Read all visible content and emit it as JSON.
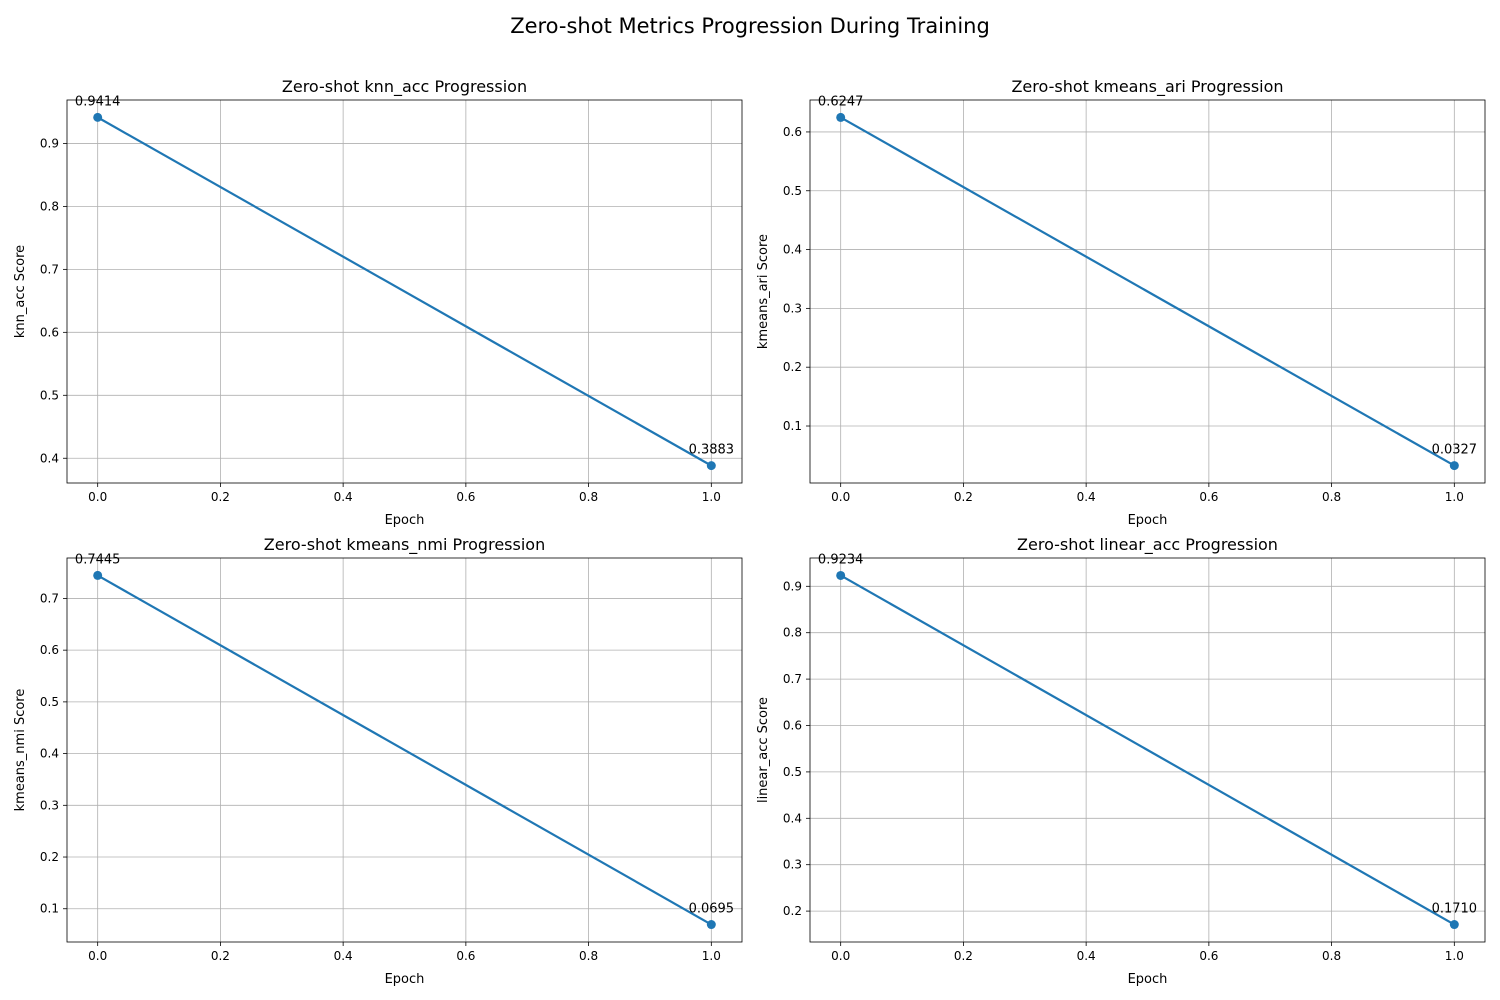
{
  "figure": {
    "title": "Zero-shot Metrics Progression During Training"
  },
  "style": {
    "line_color": "#1f77b4",
    "grid_color": "#b0b0b0",
    "axes_color": "#000000"
  },
  "chart_data": [
    {
      "type": "line",
      "title": "Zero-shot knn_acc Progression",
      "xlabel": "Epoch",
      "ylabel": "knn_acc Score",
      "x": [
        0.0,
        1.0
      ],
      "series": [
        {
          "values": [
            0.9414,
            0.3883
          ]
        }
      ],
      "data_labels": [
        "0.9414",
        "0.3883"
      ],
      "xlim": [
        -0.05,
        1.05
      ],
      "ylim": [
        0.3607,
        0.969
      ],
      "xticks": [
        0.0,
        0.2,
        0.4,
        0.6,
        0.8,
        1.0
      ],
      "xtick_labels": [
        "0.0",
        "0.2",
        "0.4",
        "0.6",
        "0.8",
        "1.0"
      ],
      "yticks": [
        0.4,
        0.5,
        0.6,
        0.7,
        0.8,
        0.9
      ],
      "ytick_labels": [
        "0.4",
        "0.5",
        "0.6",
        "0.7",
        "0.8",
        "0.9"
      ],
      "grid": true
    },
    {
      "type": "line",
      "title": "Zero-shot kmeans_ari Progression",
      "xlabel": "Epoch",
      "ylabel": "kmeans_ari Score",
      "x": [
        0.0,
        1.0
      ],
      "series": [
        {
          "values": [
            0.6247,
            0.0327
          ]
        }
      ],
      "data_labels": [
        "0.6247",
        "0.0327"
      ],
      "xlim": [
        -0.05,
        1.05
      ],
      "ylim": [
        0.0031,
        0.6543
      ],
      "xticks": [
        0.0,
        0.2,
        0.4,
        0.6,
        0.8,
        1.0
      ],
      "xtick_labels": [
        "0.0",
        "0.2",
        "0.4",
        "0.6",
        "0.8",
        "1.0"
      ],
      "yticks": [
        0.1,
        0.2,
        0.3,
        0.4,
        0.5,
        0.6
      ],
      "ytick_labels": [
        "0.1",
        "0.2",
        "0.3",
        "0.4",
        "0.5",
        "0.6"
      ],
      "grid": true
    },
    {
      "type": "line",
      "title": "Zero-shot kmeans_nmi Progression",
      "xlabel": "Epoch",
      "ylabel": "kmeans_nmi Score",
      "x": [
        0.0,
        1.0
      ],
      "series": [
        {
          "values": [
            0.7445,
            0.0695
          ]
        }
      ],
      "data_labels": [
        "0.7445",
        "0.0695"
      ],
      "xlim": [
        -0.05,
        1.05
      ],
      "ylim": [
        0.0357,
        0.7782
      ],
      "xticks": [
        0.0,
        0.2,
        0.4,
        0.6,
        0.8,
        1.0
      ],
      "xtick_labels": [
        "0.0",
        "0.2",
        "0.4",
        "0.6",
        "0.8",
        "1.0"
      ],
      "yticks": [
        0.1,
        0.2,
        0.3,
        0.4,
        0.5,
        0.6,
        0.7
      ],
      "ytick_labels": [
        "0.1",
        "0.2",
        "0.3",
        "0.4",
        "0.5",
        "0.6",
        "0.7"
      ],
      "grid": true
    },
    {
      "type": "line",
      "title": "Zero-shot linear_acc Progression",
      "xlabel": "Epoch",
      "ylabel": "linear_acc Score",
      "x": [
        0.0,
        1.0
      ],
      "series": [
        {
          "values": [
            0.9234,
            0.171
          ]
        }
      ],
      "data_labels": [
        "0.9234",
        "0.1710"
      ],
      "xlim": [
        -0.05,
        1.05
      ],
      "ylim": [
        0.1334,
        0.961
      ],
      "xticks": [
        0.0,
        0.2,
        0.4,
        0.6,
        0.8,
        1.0
      ],
      "xtick_labels": [
        "0.0",
        "0.2",
        "0.4",
        "0.6",
        "0.8",
        "1.0"
      ],
      "yticks": [
        0.2,
        0.3,
        0.4,
        0.5,
        0.6,
        0.7,
        0.8,
        0.9
      ],
      "ytick_labels": [
        "0.2",
        "0.3",
        "0.4",
        "0.5",
        "0.6",
        "0.7",
        "0.8",
        "0.9"
      ],
      "grid": true
    }
  ]
}
